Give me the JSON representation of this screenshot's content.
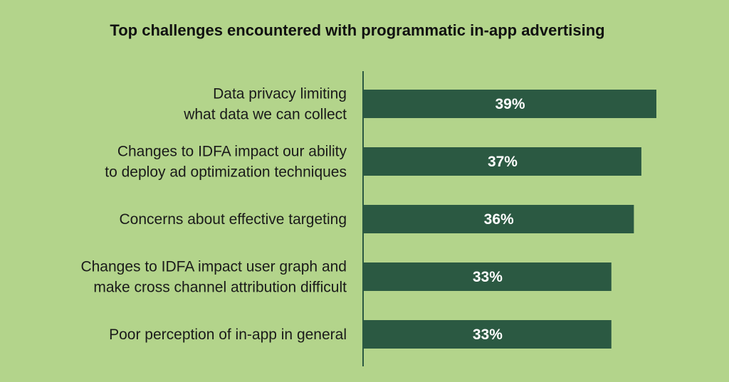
{
  "chart_data": {
    "type": "bar",
    "orientation": "horizontal",
    "title": "Top challenges encountered with programmatic in-app advertising",
    "categories": [
      [
        "Data privacy limiting",
        "what data we can collect"
      ],
      [
        "Changes to IDFA impact our ability",
        "to deploy ad optimization techniques"
      ],
      [
        "Concerns about effective targeting"
      ],
      [
        "Changes to IDFA impact user graph and",
        "make cross channel attribution difficult"
      ],
      [
        "Poor perception of in-app in general"
      ]
    ],
    "values": [
      39,
      37,
      36,
      33,
      33
    ],
    "data_labels": [
      "39%",
      "37%",
      "36%",
      "33%",
      "33%"
    ],
    "xlabel": "",
    "ylabel": "",
    "xlim": [
      0,
      39
    ],
    "grid": false,
    "colors": {
      "background": "#b3d48b",
      "bar": "#2b5942",
      "axis": "#2b5942",
      "bar_label": "#ffffff",
      "text": "#1a1a1a"
    }
  }
}
